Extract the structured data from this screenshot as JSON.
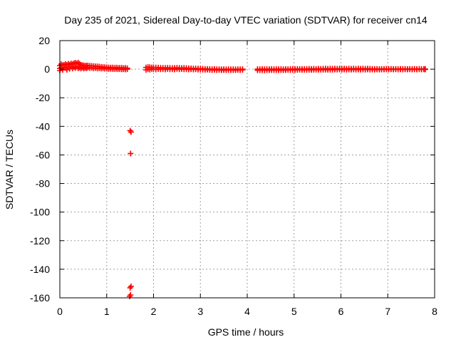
{
  "chart_data": {
    "type": "scatter",
    "title": "Day 235 of 2021, Sidereal Day-to-day VTEC variation (SDTVAR) for receiver cn14",
    "xlabel": "GPS time / hours",
    "ylabel": "SDTVAR / TECUs",
    "xlim": [
      0,
      8
    ],
    "ylim": [
      -160,
      20
    ],
    "xticks": [
      0,
      1,
      2,
      3,
      4,
      5,
      6,
      7,
      8
    ],
    "yticks": [
      20,
      0,
      -20,
      -40,
      -60,
      -80,
      -100,
      -120,
      -140,
      -160
    ],
    "grid": true,
    "legend": "none",
    "marker": "plus",
    "series": [
      {
        "color": "#ff0000",
        "points": [
          [
            0.0,
            2.5
          ],
          [
            0.0,
            0.5
          ],
          [
            0.0,
            -1.0
          ],
          [
            0.03,
            3.5
          ],
          [
            0.03,
            1.0
          ],
          [
            0.06,
            2.8
          ],
          [
            0.06,
            -0.5
          ],
          [
            0.09,
            3.0
          ],
          [
            0.09,
            1.2
          ],
          [
            0.12,
            3.6
          ],
          [
            0.12,
            0.8
          ],
          [
            0.15,
            3.0
          ],
          [
            0.15,
            -0.4
          ],
          [
            0.18,
            3.8
          ],
          [
            0.18,
            1.5
          ],
          [
            0.21,
            3.2
          ],
          [
            0.21,
            0.3
          ],
          [
            0.24,
            4.0
          ],
          [
            0.24,
            1.8
          ],
          [
            0.27,
            3.5
          ],
          [
            0.27,
            0.5
          ],
          [
            0.3,
            4.2
          ],
          [
            0.3,
            1.5
          ],
          [
            0.33,
            4.5
          ],
          [
            0.33,
            0.8
          ],
          [
            0.36,
            4.0
          ],
          [
            0.36,
            1.8
          ],
          [
            0.39,
            4.6
          ],
          [
            0.39,
            0.6
          ],
          [
            0.42,
            3.8
          ],
          [
            0.42,
            1.2
          ],
          [
            0.45,
            3.0
          ],
          [
            0.45,
            0.5
          ],
          [
            0.48,
            2.8
          ],
          [
            0.48,
            1.2
          ],
          [
            0.51,
            2.6
          ],
          [
            0.51,
            0.4
          ],
          [
            0.54,
            2.4
          ],
          [
            0.54,
            1.0
          ],
          [
            0.57,
            2.5
          ],
          [
            0.57,
            0.6
          ],
          [
            0.6,
            2.6
          ],
          [
            0.6,
            1.2
          ],
          [
            0.64,
            2.4
          ],
          [
            0.64,
            0.8
          ],
          [
            0.68,
            2.3
          ],
          [
            0.68,
            1.0
          ],
          [
            0.72,
            2.2
          ],
          [
            0.72,
            0.6
          ],
          [
            0.76,
            2.0
          ],
          [
            0.76,
            0.8
          ],
          [
            0.8,
            2.0
          ],
          [
            0.8,
            0.5
          ],
          [
            0.84,
            1.8
          ],
          [
            0.84,
            0.6
          ],
          [
            0.88,
            1.6
          ],
          [
            0.88,
            0.4
          ],
          [
            0.92,
            1.5
          ],
          [
            0.92,
            0.6
          ],
          [
            0.96,
            1.4
          ],
          [
            0.96,
            0.3
          ],
          [
            1.0,
            1.3
          ],
          [
            1.0,
            0.4
          ],
          [
            1.04,
            1.2
          ],
          [
            1.04,
            0.2
          ],
          [
            1.08,
            1.1
          ],
          [
            1.08,
            0.3
          ],
          [
            1.12,
            1.2
          ],
          [
            1.12,
            0.2
          ],
          [
            1.16,
            1.0
          ],
          [
            1.16,
            0.1
          ],
          [
            1.2,
            1.1
          ],
          [
            1.2,
            0.2
          ],
          [
            1.24,
            1.0
          ],
          [
            1.24,
            0.0
          ],
          [
            1.28,
            0.9
          ],
          [
            1.28,
            0.1
          ],
          [
            1.32,
            1.0
          ],
          [
            1.32,
            -0.1
          ],
          [
            1.36,
            0.8
          ],
          [
            1.36,
            0.0
          ],
          [
            1.4,
            0.9
          ],
          [
            1.4,
            -0.2
          ],
          [
            1.44,
            0.7
          ],
          [
            1.44,
            0.0
          ],
          [
            1.5,
            -43
          ],
          [
            1.52,
            -44
          ],
          [
            1.51,
            -59
          ],
          [
            1.5,
            -153
          ],
          [
            1.52,
            -152
          ],
          [
            1.49,
            -159
          ],
          [
            1.51,
            -158
          ],
          [
            1.84,
            1.2
          ],
          [
            1.84,
            -0.5
          ],
          [
            1.88,
            1.5
          ],
          [
            1.88,
            0.0
          ],
          [
            1.92,
            1.4
          ],
          [
            1.92,
            -0.3
          ],
          [
            1.96,
            1.2
          ],
          [
            1.96,
            0.2
          ],
          [
            2.0,
            1.3
          ],
          [
            2.0,
            0.0
          ],
          [
            2.05,
            1.2
          ],
          [
            2.05,
            -0.2
          ],
          [
            2.1,
            1.1
          ],
          [
            2.1,
            0.1
          ],
          [
            2.15,
            1.0
          ],
          [
            2.15,
            -0.1
          ],
          [
            2.2,
            1.0
          ],
          [
            2.2,
            0.0
          ],
          [
            2.25,
            0.9
          ],
          [
            2.25,
            -0.2
          ],
          [
            2.3,
            1.0
          ],
          [
            2.3,
            0.1
          ],
          [
            2.35,
            0.9
          ],
          [
            2.35,
            -0.1
          ],
          [
            2.4,
            0.8
          ],
          [
            2.4,
            0.0
          ],
          [
            2.45,
            0.9
          ],
          [
            2.45,
            -0.2
          ],
          [
            2.5,
            1.0
          ],
          [
            2.5,
            0.2
          ],
          [
            2.55,
            0.9
          ],
          [
            2.55,
            -0.1
          ],
          [
            2.6,
            0.8
          ],
          [
            2.6,
            0.1
          ],
          [
            2.65,
            0.9
          ],
          [
            2.65,
            -0.1
          ],
          [
            2.7,
            0.8
          ],
          [
            2.7,
            0.0
          ],
          [
            2.75,
            0.7
          ],
          [
            2.75,
            -0.2
          ],
          [
            2.8,
            0.6
          ],
          [
            2.8,
            0.0
          ],
          [
            2.85,
            0.5
          ],
          [
            2.85,
            -0.2
          ],
          [
            2.9,
            0.5
          ],
          [
            2.9,
            -0.1
          ],
          [
            2.95,
            0.4
          ],
          [
            2.95,
            -0.3
          ],
          [
            3.0,
            0.4
          ],
          [
            3.0,
            -0.2
          ],
          [
            3.05,
            0.3
          ],
          [
            3.05,
            -0.3
          ],
          [
            3.1,
            0.2
          ],
          [
            3.1,
            -0.4
          ],
          [
            3.15,
            0.2
          ],
          [
            3.15,
            -0.3
          ],
          [
            3.2,
            0.1
          ],
          [
            3.2,
            -0.5
          ],
          [
            3.25,
            0.0
          ],
          [
            3.25,
            -0.6
          ],
          [
            3.3,
            0.1
          ],
          [
            3.3,
            -0.4
          ],
          [
            3.35,
            0.0
          ],
          [
            3.35,
            -0.6
          ],
          [
            3.4,
            0.0
          ],
          [
            3.4,
            -0.5
          ],
          [
            3.45,
            -0.1
          ],
          [
            3.45,
            -0.7
          ],
          [
            3.5,
            0.0
          ],
          [
            3.5,
            -0.6
          ],
          [
            3.55,
            -0.1
          ],
          [
            3.55,
            -0.7
          ],
          [
            3.6,
            0.0
          ],
          [
            3.6,
            -0.5
          ],
          [
            3.65,
            -0.1
          ],
          [
            3.65,
            -0.6
          ],
          [
            3.7,
            0.0
          ],
          [
            3.7,
            -0.6
          ],
          [
            3.75,
            -0.1
          ],
          [
            3.75,
            -0.7
          ],
          [
            3.8,
            0.0
          ],
          [
            3.8,
            -0.5
          ],
          [
            3.85,
            -0.1
          ],
          [
            3.85,
            -0.6
          ],
          [
            3.9,
            0.0
          ],
          [
            3.9,
            -0.5
          ],
          [
            4.22,
            0.1
          ],
          [
            4.22,
            -0.8
          ],
          [
            4.27,
            0.0
          ],
          [
            4.27,
            -0.7
          ],
          [
            4.32,
            0.1
          ],
          [
            4.32,
            -0.6
          ],
          [
            4.37,
            0.0
          ],
          [
            4.37,
            -0.8
          ],
          [
            4.42,
            0.1
          ],
          [
            4.42,
            -0.6
          ],
          [
            4.47,
            0.0
          ],
          [
            4.47,
            -0.7
          ],
          [
            4.52,
            0.1
          ],
          [
            4.52,
            -0.6
          ],
          [
            4.57,
            0.0
          ],
          [
            4.57,
            -0.7
          ],
          [
            4.62,
            0.1
          ],
          [
            4.62,
            -0.6
          ],
          [
            4.67,
            0.0
          ],
          [
            4.67,
            -0.7
          ],
          [
            4.72,
            0.1
          ],
          [
            4.72,
            -0.6
          ],
          [
            4.77,
            0.0
          ],
          [
            4.77,
            -0.7
          ],
          [
            4.82,
            0.1
          ],
          [
            4.82,
            -0.6
          ],
          [
            4.87,
            0.0
          ],
          [
            4.87,
            -0.5
          ],
          [
            4.92,
            0.1
          ],
          [
            4.92,
            -0.6
          ],
          [
            4.97,
            0.2
          ],
          [
            4.97,
            -0.5
          ],
          [
            5.02,
            0.1
          ],
          [
            5.02,
            -0.6
          ],
          [
            5.07,
            0.2
          ],
          [
            5.07,
            -0.5
          ],
          [
            5.12,
            0.1
          ],
          [
            5.12,
            -0.4
          ],
          [
            5.17,
            0.2
          ],
          [
            5.17,
            -0.5
          ],
          [
            5.22,
            0.1
          ],
          [
            5.22,
            -0.4
          ],
          [
            5.27,
            0.2
          ],
          [
            5.27,
            -0.5
          ],
          [
            5.32,
            0.3
          ],
          [
            5.32,
            -0.4
          ],
          [
            5.37,
            0.2
          ],
          [
            5.37,
            -0.5
          ],
          [
            5.42,
            0.3
          ],
          [
            5.42,
            -0.4
          ],
          [
            5.47,
            0.2
          ],
          [
            5.47,
            -0.3
          ],
          [
            5.52,
            0.3
          ],
          [
            5.52,
            -0.4
          ],
          [
            5.57,
            0.2
          ],
          [
            5.57,
            -0.3
          ],
          [
            5.62,
            0.3
          ],
          [
            5.62,
            -0.4
          ],
          [
            5.67,
            0.4
          ],
          [
            5.67,
            -0.3
          ],
          [
            5.72,
            0.3
          ],
          [
            5.72,
            -0.4
          ],
          [
            5.77,
            0.4
          ],
          [
            5.77,
            -0.3
          ],
          [
            5.82,
            0.3
          ],
          [
            5.82,
            -0.4
          ],
          [
            5.87,
            0.4
          ],
          [
            5.87,
            -0.2
          ],
          [
            5.92,
            0.3
          ],
          [
            5.92,
            -0.3
          ],
          [
            5.97,
            0.4
          ],
          [
            5.97,
            -0.2
          ],
          [
            6.02,
            0.3
          ],
          [
            6.02,
            -0.3
          ],
          [
            6.07,
            0.4
          ],
          [
            6.07,
            -0.2
          ],
          [
            6.12,
            0.3
          ],
          [
            6.12,
            -0.3
          ],
          [
            6.17,
            0.4
          ],
          [
            6.17,
            -0.2
          ],
          [
            6.22,
            0.3
          ],
          [
            6.22,
            -0.3
          ],
          [
            6.27,
            0.4
          ],
          [
            6.27,
            -0.2
          ],
          [
            6.32,
            0.3
          ],
          [
            6.32,
            -0.3
          ],
          [
            6.37,
            0.4
          ],
          [
            6.37,
            -0.2
          ],
          [
            6.42,
            0.3
          ],
          [
            6.42,
            -0.3
          ],
          [
            6.47,
            0.4
          ],
          [
            6.47,
            -0.2
          ],
          [
            6.52,
            0.3
          ],
          [
            6.52,
            -0.3
          ],
          [
            6.57,
            0.4
          ],
          [
            6.57,
            -0.2
          ],
          [
            6.62,
            0.3
          ],
          [
            6.62,
            -0.3
          ],
          [
            6.67,
            0.2
          ],
          [
            6.67,
            -0.2
          ],
          [
            6.72,
            0.1
          ],
          [
            6.72,
            -0.3
          ],
          [
            6.77,
            0.2
          ],
          [
            6.77,
            -0.2
          ],
          [
            6.82,
            0.1
          ],
          [
            6.82,
            -0.3
          ],
          [
            6.87,
            0.2
          ],
          [
            6.87,
            -0.2
          ],
          [
            6.92,
            0.1
          ],
          [
            6.92,
            -0.2
          ],
          [
            6.97,
            0.2
          ],
          [
            6.97,
            -0.1
          ],
          [
            7.02,
            0.1
          ],
          [
            7.02,
            -0.2
          ],
          [
            7.07,
            0.2
          ],
          [
            7.07,
            -0.1
          ],
          [
            7.12,
            0.1
          ],
          [
            7.12,
            -0.2
          ],
          [
            7.17,
            0.2
          ],
          [
            7.17,
            -0.1
          ],
          [
            7.22,
            0.1
          ],
          [
            7.22,
            -0.2
          ],
          [
            7.27,
            0.2
          ],
          [
            7.27,
            -0.1
          ],
          [
            7.32,
            0.1
          ],
          [
            7.32,
            -0.2
          ],
          [
            7.37,
            0.2
          ],
          [
            7.37,
            -0.1
          ],
          [
            7.42,
            0.1
          ],
          [
            7.42,
            -0.2
          ],
          [
            7.47,
            0.2
          ],
          [
            7.47,
            -0.1
          ],
          [
            7.52,
            0.1
          ],
          [
            7.52,
            -0.2
          ],
          [
            7.57,
            0.2
          ],
          [
            7.57,
            -0.1
          ],
          [
            7.62,
            0.1
          ],
          [
            7.62,
            -0.2
          ],
          [
            7.67,
            0.2
          ],
          [
            7.67,
            -0.1
          ],
          [
            7.72,
            0.1
          ],
          [
            7.72,
            -0.2
          ],
          [
            7.77,
            0.2
          ],
          [
            7.77,
            -0.1
          ],
          [
            7.8,
            0.1
          ],
          [
            7.8,
            -0.2
          ]
        ]
      }
    ]
  }
}
